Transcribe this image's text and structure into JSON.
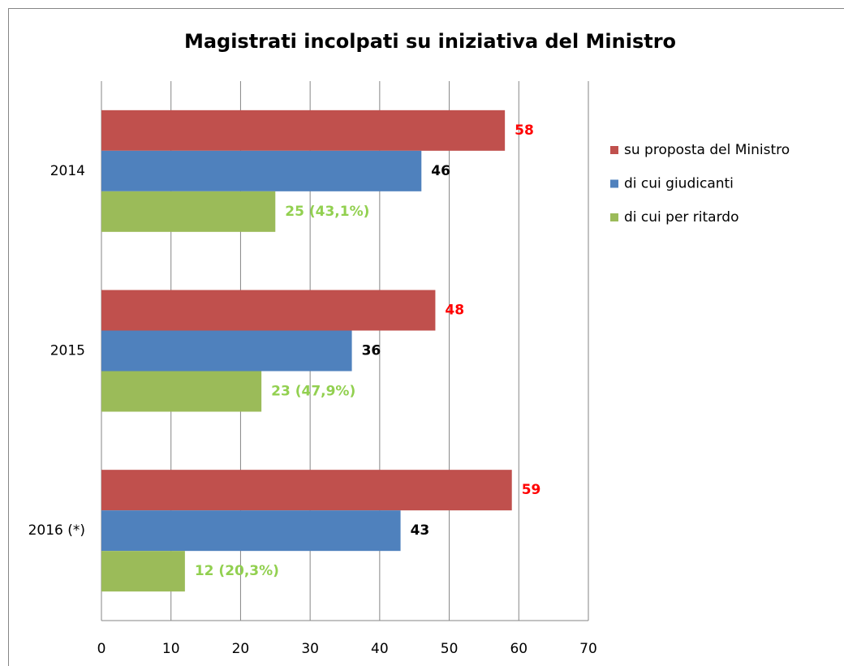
{
  "chart_data": {
    "type": "hbar",
    "title": "Magistrati incolpati su iniziativa del Ministro",
    "categories": [
      "2014",
      "2015",
      "2016 (*)"
    ],
    "series": [
      {
        "name": "su proposta del Ministro",
        "color": "#c0504d",
        "label_color": "#ff0000",
        "values": [
          58,
          48,
          59
        ]
      },
      {
        "name": "di cui giudicanti",
        "color": "#4f81bd",
        "label_color": "#000000",
        "values": [
          46,
          36,
          43
        ]
      },
      {
        "name": "di cui per ritardo",
        "color": "#9bbb59",
        "label_color": "#92d050",
        "values": [
          25,
          23,
          12
        ],
        "value_labels": [
          "25 (43,1%)",
          "23 (47,9%)",
          "12 (20,3%)"
        ]
      }
    ],
    "xlim": [
      0,
      70
    ],
    "xticks": [
      0,
      10,
      20,
      30,
      40,
      50,
      60,
      70
    ],
    "grid": true,
    "legend": "right"
  }
}
